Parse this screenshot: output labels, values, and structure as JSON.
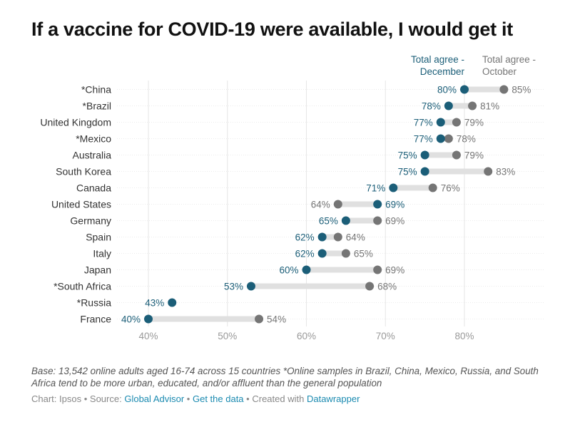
{
  "title": "If a vaccine for COVID-19 were available, I would get it",
  "footer": {
    "note": "Base: 13,542 online adults aged 16-74 across 15 countries *Online samples in Brazil, China, Mexico, Russia, and South Africa tend to be more urban, educated, and/or affluent than the general population",
    "chart_by": "Chart: Ipsos",
    "source_prefix": "Source:",
    "source_link": "Global Advisor",
    "data_link": "Get the data",
    "created_prefix": "Created with",
    "created_link": "Datawrapper",
    "separator": "•"
  },
  "colors": {
    "december": "#1b5e78",
    "october": "#757575",
    "connector": "#e0e0e0",
    "grid": "#e6e6e6",
    "tick": "#999999",
    "label": "#333333"
  },
  "chart_data": {
    "type": "dot-range",
    "xlim": [
      40,
      90
    ],
    "x_ticks": [
      40,
      50,
      60,
      70,
      80
    ],
    "x_tick_labels": [
      "40%",
      "50%",
      "60%",
      "70%",
      "80%"
    ],
    "series": [
      {
        "name": "Total agree - December",
        "key": "december"
      },
      {
        "name": "Total agree - October",
        "key": "october"
      }
    ],
    "rows": [
      {
        "label": "*China",
        "december": 80,
        "october": 85
      },
      {
        "label": "*Brazil",
        "december": 78,
        "october": 81
      },
      {
        "label": "United Kingdom",
        "december": 77,
        "october": 79
      },
      {
        "label": "*Mexico",
        "december": 77,
        "october": 78
      },
      {
        "label": "Australia",
        "december": 75,
        "october": 79
      },
      {
        "label": "South Korea",
        "december": 75,
        "october": 83
      },
      {
        "label": "Canada",
        "december": 71,
        "october": 76
      },
      {
        "label": "United States",
        "december": 69,
        "october": 64
      },
      {
        "label": "Germany",
        "december": 65,
        "october": 69
      },
      {
        "label": "Spain",
        "december": 62,
        "october": 64
      },
      {
        "label": "Italy",
        "december": 62,
        "october": 65
      },
      {
        "label": "Japan",
        "december": 60,
        "october": 69
      },
      {
        "label": "*South Africa",
        "december": 53,
        "october": 68
      },
      {
        "label": "*Russia",
        "december": 43,
        "october": null
      },
      {
        "label": "France",
        "december": 40,
        "october": 54
      }
    ],
    "legend_lines": {
      "december": [
        "Total agree -",
        "December"
      ],
      "october": [
        "Total agree -",
        "October"
      ]
    },
    "value_suffix": "%"
  }
}
